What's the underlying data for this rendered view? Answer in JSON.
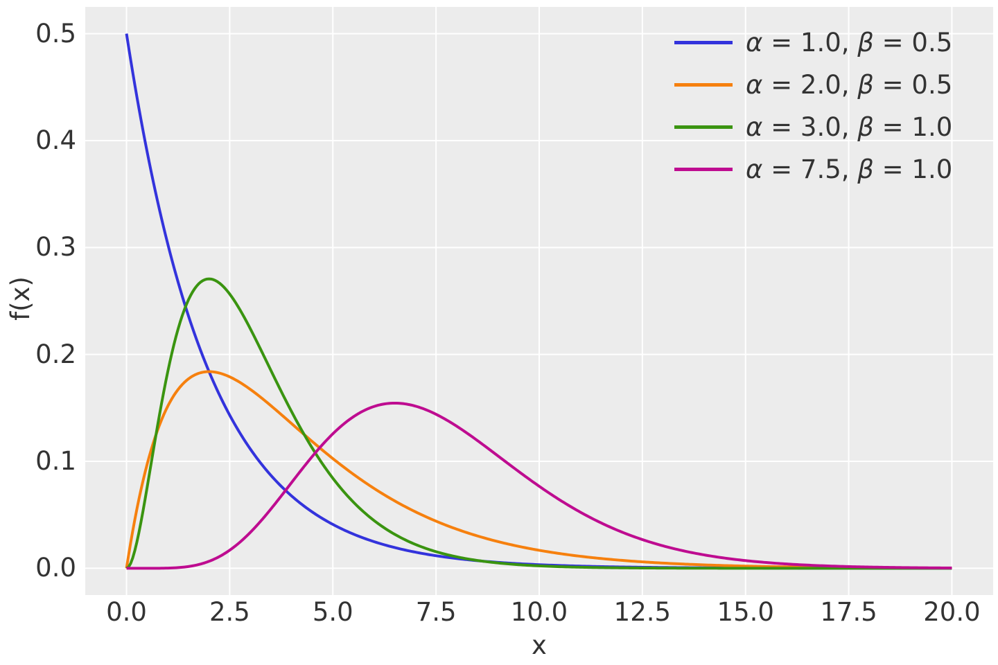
{
  "figure": {
    "background_color": "#ffffff",
    "axes_background_color": "#ececec",
    "grid_color": "#ffffff",
    "text_color": "#333333"
  },
  "chart_data": {
    "type": "line",
    "title": "",
    "xlabel": "x",
    "ylabel": "f(x)",
    "xlim": [
      -1,
      21
    ],
    "ylim": [
      -0.025,
      0.525
    ],
    "grid": true,
    "legend_position": "upper right",
    "curve_formula": "gamma probability density f(x) = beta^alpha * x^(alpha-1) * exp(-beta*x) / Gamma(alpha)",
    "x_range": {
      "min": 0,
      "max": 20,
      "step": 0.05
    },
    "x_ticks": [
      {
        "v": 0,
        "label": "0.0"
      },
      {
        "v": 2.5,
        "label": "2.5"
      },
      {
        "v": 5,
        "label": "5.0"
      },
      {
        "v": 7.5,
        "label": "7.5"
      },
      {
        "v": 10,
        "label": "10.0"
      },
      {
        "v": 12.5,
        "label": "12.5"
      },
      {
        "v": 15,
        "label": "15.0"
      },
      {
        "v": 17.5,
        "label": "17.5"
      },
      {
        "v": 20,
        "label": "20.0"
      }
    ],
    "y_ticks": [
      {
        "v": 0.0,
        "label": "0.0"
      },
      {
        "v": 0.1,
        "label": "0.1"
      },
      {
        "v": 0.2,
        "label": "0.2"
      },
      {
        "v": 0.3,
        "label": "0.3"
      },
      {
        "v": 0.4,
        "label": "0.4"
      },
      {
        "v": 0.5,
        "label": "0.5"
      }
    ],
    "series": [
      {
        "name": "gamma(alpha=1.0, beta=0.5)",
        "alpha": 1.0,
        "beta": 0.5,
        "color": "#3333dc",
        "peak": {
          "x": 0.0,
          "y": 0.5
        },
        "legend": {
          "sym_a": "α",
          "eq_a": " = 1.0, ",
          "sym_b": "β",
          "eq_b": " = 0.5"
        }
      },
      {
        "name": "gamma(alpha=2.0, beta=0.5)",
        "alpha": 2.0,
        "beta": 0.5,
        "color": "#f6800e",
        "peak": {
          "x": 2.0,
          "y": 0.18394
        },
        "legend": {
          "sym_a": "α",
          "eq_a": " = 2.0, ",
          "sym_b": "β",
          "eq_b": " = 0.5"
        }
      },
      {
        "name": "gamma(alpha=3.0, beta=1.0)",
        "alpha": 3.0,
        "beta": 1.0,
        "color": "#3a9410",
        "peak": {
          "x": 2.0,
          "y": 0.27067
        },
        "legend": {
          "sym_a": "α",
          "eq_a": " = 3.0, ",
          "sym_b": "β",
          "eq_b": " = 1.0"
        }
      },
      {
        "name": "gamma(alpha=7.5, beta=1.0)",
        "alpha": 7.5,
        "beta": 1.0,
        "color": "#be0c90",
        "peak": {
          "x": 6.5,
          "y": 0.1548
        },
        "legend": {
          "sym_a": "α",
          "eq_a": " = 7.5, ",
          "sym_b": "β",
          "eq_b": " = 1.0"
        }
      }
    ]
  }
}
